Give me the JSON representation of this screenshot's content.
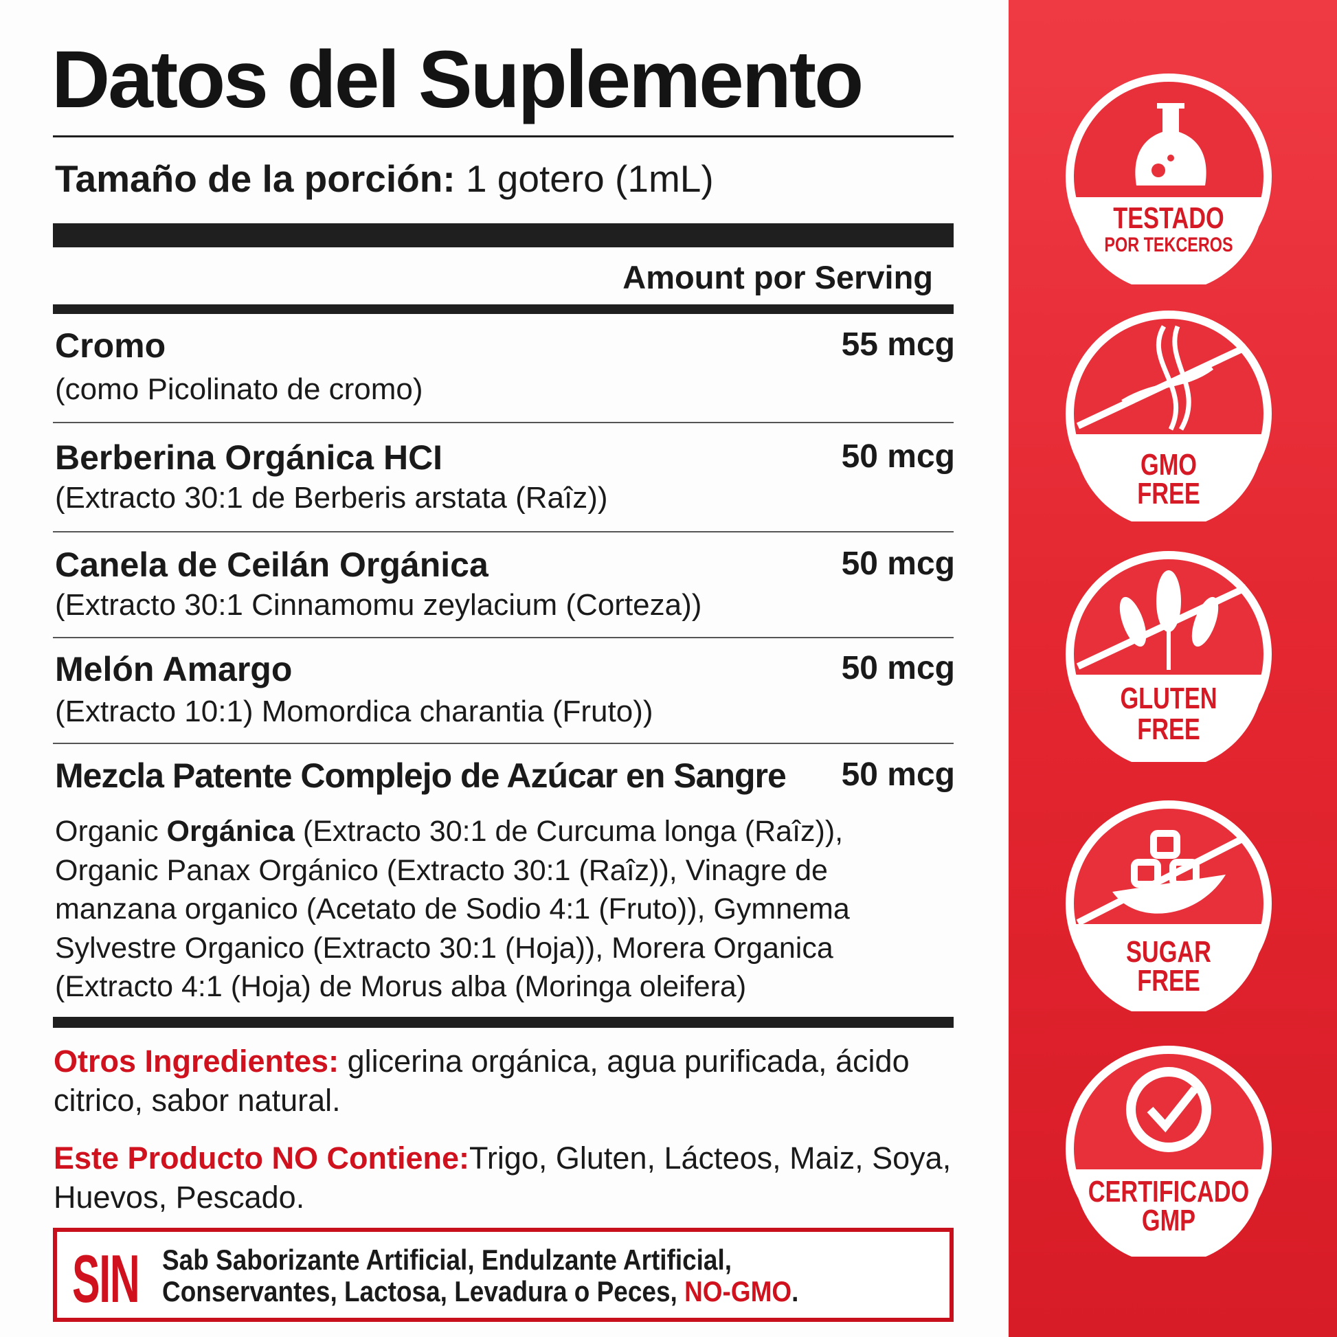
{
  "title": "Datos del Suplemento",
  "serving": {
    "label": "Tamaño de la porción:",
    "value": "1 gotero (1mL)"
  },
  "amount_header": "Amount por Serving",
  "ingredients": [
    {
      "name": "Cromo",
      "detail": "(como Picolinato de cromo)",
      "amount": "55 mcg"
    },
    {
      "name": "Berberina Orgánica HCI",
      "detail": "(Extracto 30:1 de Berberis arstata (Raîz))",
      "amount": "50 mcg"
    },
    {
      "name": "Canela de Ceilán Orgánica",
      "detail": "(Extracto 30:1 Cinnamomu zeylacium (Corteza))",
      "amount": "50 mcg"
    },
    {
      "name": "Melón Amargo",
      "detail": "(Extracto 10:1)  Momordica charantia (Fruto))",
      "amount": "50 mcg"
    },
    {
      "name": "Mezcla Patente Complejo de Azúcar en Sangre",
      "amount": "50 mcg"
    }
  ],
  "blend": {
    "prefix": "Organic ",
    "bold": "Orgánica",
    "rest": " (Extracto 30:1 de Curcuma longa (Raîz)), Organic Panax Orgánico (Extracto 30:1 (Raîz)), Vinagre de manzana organico (Acetato de Sodio 4:1 (Fruto)), Gymnema Sylvestre Organico (Extracto 30:1 (Hoja)), Morera Organica (Extracto 4:1 (Hoja) de Morus alba (Moringa oleifera)"
  },
  "other": {
    "label": "Otros Ingredientes:",
    "text": " glicerina orgánica, agua purificada, ácido citrico, sabor natural."
  },
  "contains_not": {
    "label": "Este Producto NO Contiene:",
    "text": "Trigo, Gluten, Lácteos, Maiz, Soya, Huevos, Pescado."
  },
  "sin_box": {
    "big": "SIN",
    "line1": "Sab Saborizante Artificial, Endulzante Artificial,",
    "line2": "Conservantes, Lactosa, Levadura o Peces, ",
    "highlight": "NO-GMO",
    "end": "."
  },
  "badges": [
    {
      "icon": "flask-icon",
      "line1": "TESTADO",
      "line2": "POR TEKCEROS"
    },
    {
      "icon": "dna-icon",
      "line1": "GMO",
      "line2": "FREE"
    },
    {
      "icon": "wheat-icon",
      "line1": "GLUTEN",
      "line2": "FREE"
    },
    {
      "icon": "sugar-cubes-icon",
      "line1": "SUGAR",
      "line2": "FREE"
    },
    {
      "icon": "certified-check-icon",
      "line1": "CERTIFICADO",
      "line2": "GMP"
    }
  ],
  "colors": {
    "accent": "#d0121e",
    "panel": "#e32630",
    "text": "#1a1a1a"
  }
}
